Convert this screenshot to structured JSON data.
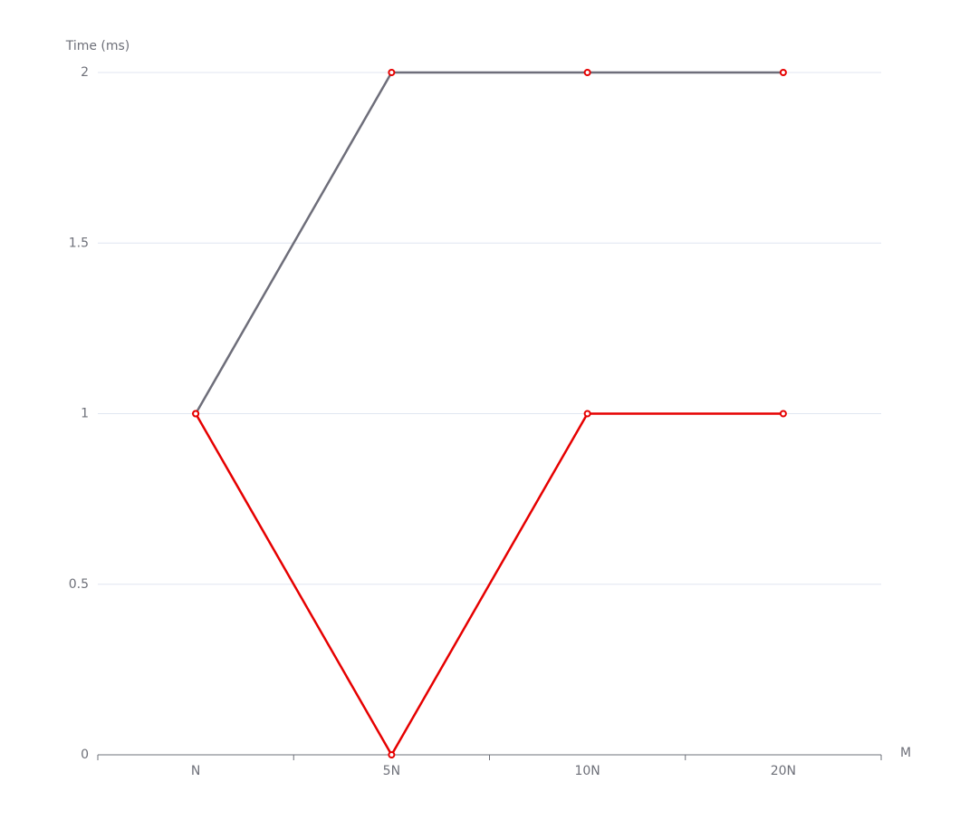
{
  "chart_data": {
    "type": "line",
    "y_label": "Time (ms)",
    "x_label": "M",
    "categories": [
      "N",
      "5N",
      "10N",
      "20N"
    ],
    "series": [
      {
        "color": "#6e6e7a",
        "marker_color": "#e60000",
        "values": [
          1,
          2,
          2,
          2
        ]
      },
      {
        "color": "#e60000",
        "marker_color": "#e60000",
        "values": [
          1,
          0,
          1,
          1
        ]
      }
    ],
    "ylim": [
      0,
      2
    ],
    "yticks": [
      0,
      0.5,
      1,
      1.5,
      2
    ],
    "grid": true
  }
}
